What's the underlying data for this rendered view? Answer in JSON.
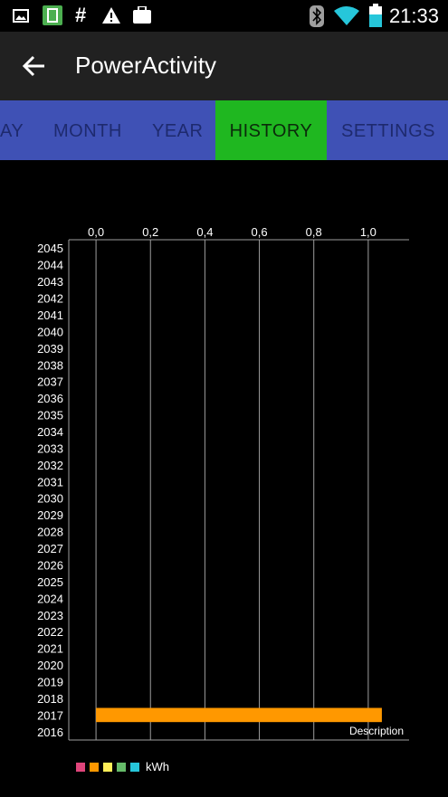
{
  "status_bar": {
    "time": "21:33",
    "left_icons": [
      "image-icon",
      "app-notification-icon",
      "hash-icon",
      "warning-icon",
      "briefcase-icon"
    ],
    "right_icons": [
      "bluetooth-icon",
      "wifi-icon",
      "battery-icon"
    ]
  },
  "app_bar": {
    "title": "PowerActivity",
    "back_icon": "arrow-left-icon"
  },
  "tabs": [
    {
      "label": "AY",
      "active": false
    },
    {
      "label": "MONTH",
      "active": false
    },
    {
      "label": "YEAR",
      "active": false
    },
    {
      "label": "HISTORY",
      "active": true
    },
    {
      "label": "SETTINGS",
      "active": false
    }
  ],
  "colors": {
    "tab_bar": "#3f51b5",
    "tab_active": "#1fb720",
    "app_bar": "#212121",
    "bar": "#ff9800"
  },
  "chart_data": {
    "type": "bar",
    "orientation": "horizontal",
    "categories": [
      "2045",
      "2044",
      "2043",
      "2042",
      "2041",
      "2040",
      "2039",
      "2038",
      "2037",
      "2036",
      "2035",
      "2034",
      "2033",
      "2032",
      "2031",
      "2030",
      "2029",
      "2028",
      "2027",
      "2026",
      "2025",
      "2024",
      "2023",
      "2022",
      "2021",
      "2020",
      "2019",
      "2018",
      "2017",
      "2016"
    ],
    "values": [
      0,
      0,
      0,
      0,
      0,
      0,
      0,
      0,
      0,
      0,
      0,
      0,
      0,
      0,
      0,
      0,
      0,
      0,
      0,
      0,
      0,
      0,
      0,
      0,
      0,
      0,
      0,
      0,
      1.05,
      0
    ],
    "ticks": [
      "0,0",
      "0,2",
      "0,4",
      "0,6",
      "0,8",
      "1,0"
    ],
    "tick_values": [
      0,
      0.2,
      0.4,
      0.6,
      0.8,
      1.0
    ],
    "xlim": [
      -0.1,
      1.15
    ],
    "grid": true,
    "description": "Description",
    "legend": {
      "colors": [
        "#e0457b",
        "#ff9800",
        "#ffee58",
        "#66bb6a",
        "#26c6da"
      ],
      "label": "kWh"
    }
  }
}
